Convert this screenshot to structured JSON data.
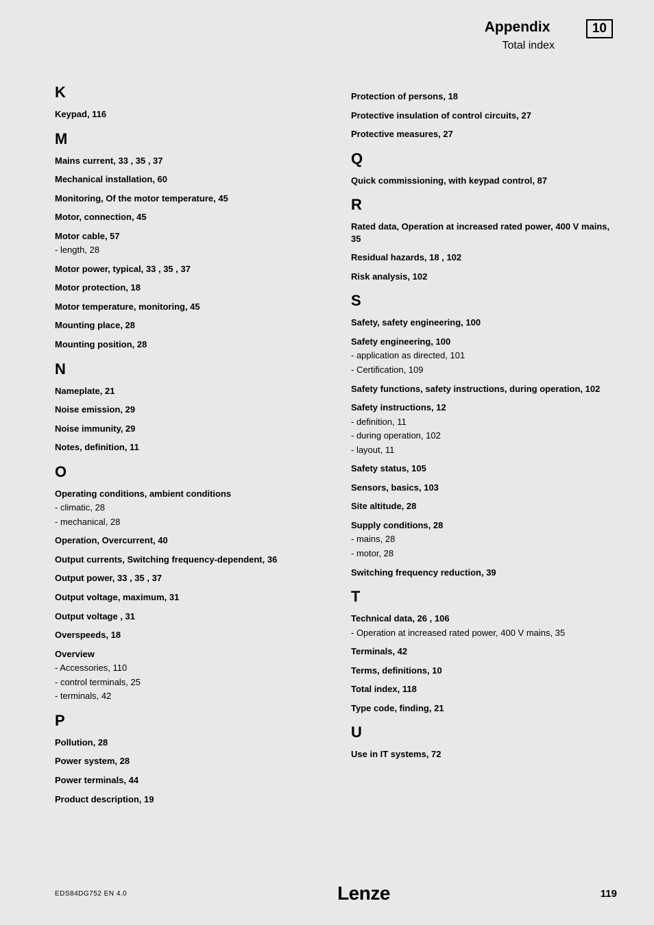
{
  "header": {
    "title": "Appendix",
    "badge": "10",
    "subtitle": "Total index"
  },
  "left": {
    "K": {
      "letter": "K",
      "items": [
        {
          "t": "Keypad,  116"
        }
      ]
    },
    "M": {
      "letter": "M",
      "items": [
        {
          "t": "Mains current,  33 ,  35 ,  37"
        },
        {
          "t": "Mechanical installation,  60"
        },
        {
          "t": "Monitoring, Of the motor temperature,  45"
        },
        {
          "t": "Motor, connection,  45"
        },
        {
          "t": "Motor cable,  57",
          "subs": [
            "- length,  28"
          ]
        },
        {
          "t": "Motor power, typical,  33 ,  35 ,  37"
        },
        {
          "t": "Motor protection,  18"
        },
        {
          "t": "Motor temperature, monitoring,  45"
        },
        {
          "t": "Mounting place,  28"
        },
        {
          "t": "Mounting position,  28"
        }
      ]
    },
    "N": {
      "letter": "N",
      "items": [
        {
          "t": "Nameplate,  21"
        },
        {
          "t": "Noise emission,  29"
        },
        {
          "t": "Noise immunity,  29"
        },
        {
          "t": "Notes, definition,  11"
        }
      ]
    },
    "O": {
      "letter": "O",
      "items": [
        {
          "t": "Operating conditions, ambient conditions",
          "subs": [
            "- climatic,  28",
            "- mechanical,  28"
          ]
        },
        {
          "t": "Operation, Overcurrent,  40"
        },
        {
          "t": "Output currents, Switching frequency-dependent,  36"
        },
        {
          "t": "Output power,  33 ,  35 ,  37"
        },
        {
          "t": "Output voltage, maximum,  31"
        },
        {
          "t": "Output voltage ,  31"
        },
        {
          "t": "Overspeeds,  18"
        },
        {
          "t": "Overview",
          "subs": [
            "- Accessories,  110",
            "- control terminals,  25",
            "- terminals,  42"
          ]
        }
      ]
    },
    "P": {
      "letter": "P",
      "items": [
        {
          "t": "Pollution,  28"
        },
        {
          "t": "Power system,  28"
        },
        {
          "t": "Power terminals,  44"
        },
        {
          "t": "Product description,  19"
        }
      ]
    }
  },
  "right": {
    "Pcont": {
      "items": [
        {
          "t": "Protection of persons,  18"
        },
        {
          "t": "Protective insulation of control circuits,  27"
        },
        {
          "t": "Protective measures,  27"
        }
      ]
    },
    "Q": {
      "letter": "Q",
      "items": [
        {
          "t": "Quick commissioning, with keypad control,  87"
        }
      ]
    },
    "R": {
      "letter": "R",
      "items": [
        {
          "t": "Rated data, Operation at increased rated power, 400 V mains,  35"
        },
        {
          "t": "Residual hazards,  18 ,  102"
        },
        {
          "t": "Risk analysis,  102"
        }
      ]
    },
    "S": {
      "letter": "S",
      "items": [
        {
          "t": "Safety, safety engineering,  100"
        },
        {
          "t": "Safety engineering,  100",
          "subs": [
            "- application as directed,  101",
            "- Certification,  109"
          ]
        },
        {
          "t": "Safety functions, safety instructions, during operation,  102"
        },
        {
          "t": "Safety instructions,  12",
          "subs": [
            "- definition,  11",
            "- during operation,  102",
            "- layout,  11"
          ]
        },
        {
          "t": "Safety status,  105"
        },
        {
          "t": "Sensors, basics,  103"
        },
        {
          "t": "Site altitude,  28"
        },
        {
          "t": "Supply conditions,  28",
          "subs": [
            "- mains,  28",
            "- motor,  28"
          ]
        },
        {
          "t": "Switching frequency reduction,  39"
        }
      ]
    },
    "T": {
      "letter": "T",
      "items": [
        {
          "t": "Technical data,  26 ,  106",
          "subs": [
            "- Operation at increased rated power, 400 V mains,  35"
          ]
        },
        {
          "t": "Terminals,  42"
        },
        {
          "t": "Terms, definitions,  10"
        },
        {
          "t": "Total index, 118"
        },
        {
          "t": "Type code, finding,  21"
        }
      ]
    },
    "U": {
      "letter": "U",
      "items": [
        {
          "t": "Use in IT systems,  72"
        }
      ]
    }
  },
  "footer": {
    "left": "EDS84DG752  EN   4.0",
    "logo": "Lenze",
    "page": "119"
  }
}
